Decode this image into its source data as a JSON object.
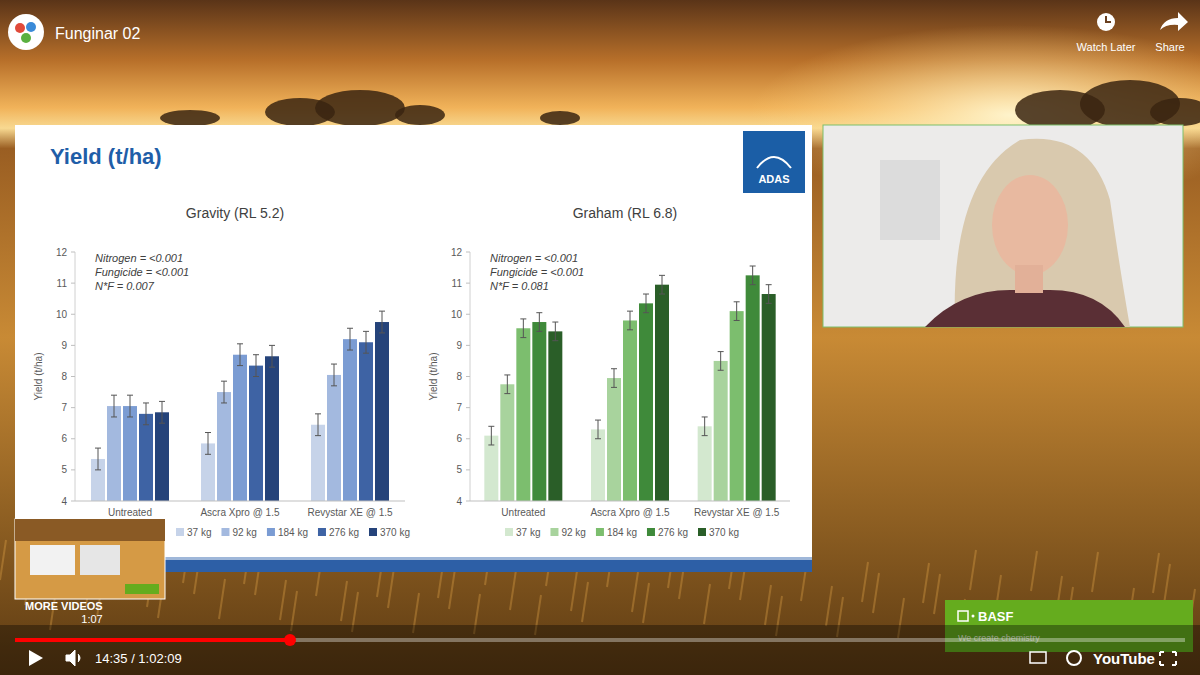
{
  "page": {
    "video_title": "Funginar 02",
    "watch_later": "Watch Later",
    "share": "Share",
    "slide_title": "Yield (t/ha)",
    "logo": "ADAS",
    "time": "14:35 / 1:02:09",
    "brand": "YouTube",
    "sponsor": "BASF",
    "sponsor_tagline": "We create chemistry",
    "more_videos": "MORE VIDEOS",
    "thumb_duration": "1:07"
  },
  "chart_data": [
    {
      "type": "bar",
      "title": "Gravity (RL 5.2)",
      "y_label": "Yield (t/ha)",
      "annotations": [
        "Nitrogen = <0.001",
        "Fungicide = <0.001",
        "N*F = 0.007"
      ],
      "categories": [
        "Untreated",
        "Ascra Xpro @ 1.5",
        "Revystar XE @ 1.5"
      ],
      "series": [
        {
          "name": "37 kg",
          "color": "#c6d3e9",
          "values": [
            5.35,
            5.85,
            6.45
          ],
          "errors": [
            0.35,
            0.35,
            0.35
          ]
        },
        {
          "name": "92 kg",
          "color": "#a3b9df",
          "values": [
            7.05,
            7.5,
            8.05
          ],
          "errors": [
            0.35,
            0.35,
            0.35
          ]
        },
        {
          "name": "184 kg",
          "color": "#7b9cd3",
          "values": [
            7.05,
            8.7,
            9.2
          ],
          "errors": [
            0.35,
            0.35,
            0.35
          ]
        },
        {
          "name": "276 kg",
          "color": "#3e63a4",
          "values": [
            6.8,
            8.35,
            9.1
          ],
          "errors": [
            0.35,
            0.35,
            0.35
          ]
        },
        {
          "name": "370 kg",
          "color": "#25437a",
          "values": [
            6.85,
            8.65,
            9.75
          ],
          "errors": [
            0.35,
            0.35,
            0.35
          ]
        }
      ],
      "ylim": [
        4,
        12
      ],
      "yticks": [
        4,
        5,
        6,
        7,
        8,
        9,
        10,
        11,
        12
      ],
      "grid": false,
      "legend": "bottom"
    },
    {
      "type": "bar",
      "title": "Graham (RL 6.8)",
      "y_label": "Yield (t/ha)",
      "annotations": [
        "Nitrogen = <0.001",
        "Fungicide = <0.001",
        "N*F = 0.081"
      ],
      "categories": [
        "Untreated",
        "Ascra Xpro @ 1.5",
        "Revystar XE @ 1.5"
      ],
      "series": [
        {
          "name": "37 kg",
          "color": "#d3e8cf",
          "values": [
            6.1,
            6.3,
            6.4
          ],
          "errors": [
            0.3,
            0.3,
            0.3
          ]
        },
        {
          "name": "92 kg",
          "color": "#a8d39d",
          "values": [
            7.75,
            7.95,
            8.5
          ],
          "errors": [
            0.3,
            0.3,
            0.3
          ]
        },
        {
          "name": "184 kg",
          "color": "#7cbe6e",
          "values": [
            9.55,
            9.8,
            10.1
          ],
          "errors": [
            0.3,
            0.3,
            0.3
          ]
        },
        {
          "name": "276 kg",
          "color": "#3f8a3a",
          "values": [
            9.75,
            10.35,
            11.25
          ],
          "errors": [
            0.3,
            0.3,
            0.3
          ]
        },
        {
          "name": "370 kg",
          "color": "#2a5e28",
          "values": [
            9.45,
            10.95,
            10.65
          ],
          "errors": [
            0.3,
            0.3,
            0.3
          ]
        }
      ],
      "ylim": [
        4,
        12
      ],
      "yticks": [
        4,
        5,
        6,
        7,
        8,
        9,
        10,
        11,
        12
      ],
      "grid": false,
      "legend": "bottom"
    }
  ]
}
